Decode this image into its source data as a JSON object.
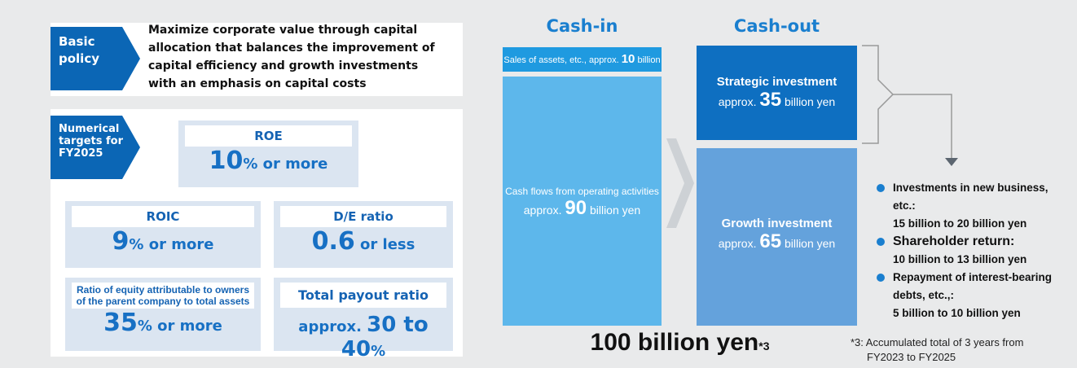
{
  "policy": {
    "label": [
      "Basic",
      "policy"
    ],
    "text": [
      "Maximize corporate value through capital",
      "allocation that balances the improvement of",
      "capital efficiency and growth investments",
      "with an emphasis on capital costs"
    ]
  },
  "targets": {
    "label": [
      "Numerical",
      "targets for",
      "FY2025"
    ],
    "roe": {
      "title": "ROE",
      "value": "10",
      "suffix": "% or more"
    },
    "roic": {
      "title": "ROIC",
      "value": "9",
      "suffix": "% or more"
    },
    "de": {
      "title": "D/E ratio",
      "value": "0.6",
      "suffix": " or less"
    },
    "equity": {
      "title": [
        "Ratio of equity attributable to owners",
        "of the parent company to total assets"
      ],
      "value": "35",
      "suffix": "% or more"
    },
    "payout": {
      "title": "Total payout ratio",
      "prefix": "approx. ",
      "value": "30 to 40",
      "suffix": "%"
    }
  },
  "cash_in": {
    "heading": "Cash-in",
    "sales": {
      "prefix": "Sales of assets, etc., approx. ",
      "value": "10",
      "suffix": " billion yen"
    },
    "operating": {
      "title": "Cash flows from operating activities",
      "prefix": "approx. ",
      "value": "90",
      "suffix": " billion yen"
    }
  },
  "cash_out": {
    "heading": "Cash-out",
    "strategic": {
      "title": "Strategic investment",
      "prefix": "approx. ",
      "value": "35",
      "suffix": " billion yen"
    },
    "growth": {
      "title": "Growth investment",
      "prefix": "approx. ",
      "value": "65",
      "suffix": " billion yen"
    }
  },
  "total": {
    "text": "100 billion yen",
    "note": "*3"
  },
  "bullets": [
    [
      "Investments in new business, etc.:",
      "15 billion to 20 billion yen"
    ],
    [
      "Shareholder return:",
      "10 billion to 13 billion yen"
    ],
    [
      "Repayment of interest-bearing",
      "debts, etc.,:",
      "5 billion to 10 billion yen"
    ]
  ],
  "footnote": [
    "*3: Accumulated total of 3 years from",
    "FY2023 to FY2025"
  ]
}
